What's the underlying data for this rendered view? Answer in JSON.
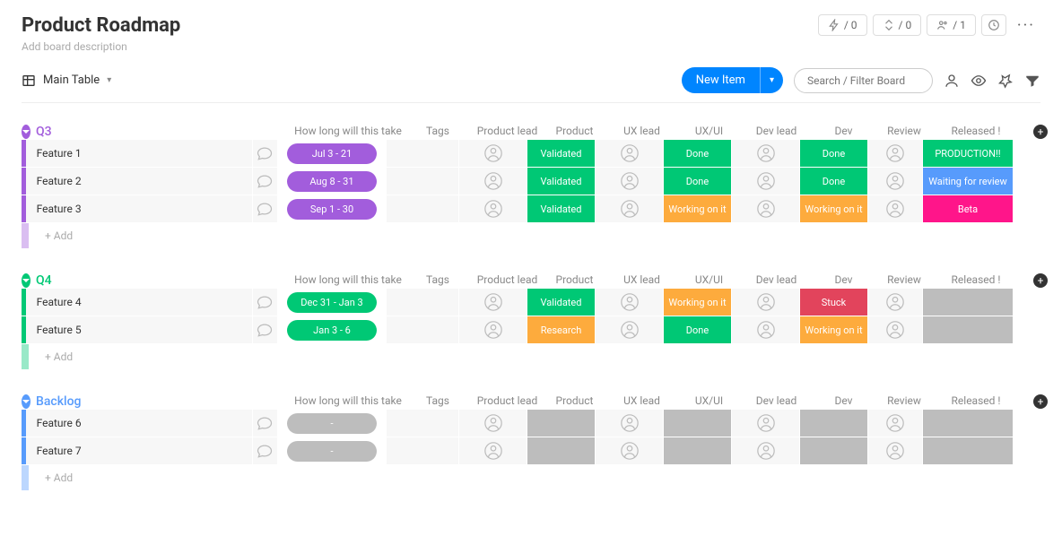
{
  "page": {
    "title": "Product Roadmap",
    "description_placeholder": "Add board description",
    "view_label": "Main Table",
    "new_item_label": "New Item",
    "search_placeholder": "Search / Filter Board",
    "add_row_label": "+ Add"
  },
  "header_pills": {
    "automations": "/ 0",
    "integrations": "/ 0",
    "members": "/ 1"
  },
  "columns": [
    "How long will this take",
    "Tags",
    "Product lead",
    "Product",
    "UX lead",
    "UX/UI",
    "Dev lead",
    "Dev",
    "Review",
    "Released !"
  ],
  "status_colors": {
    "validated": "#00c875",
    "done": "#00c875",
    "working": "#fdab3d",
    "stuck": "#e2445c",
    "research": "#fdab3d",
    "production": "#00c875",
    "waitreview": "#579bfc",
    "beta": "#ff158a",
    "grey": "#bdbdbd"
  },
  "groups": [
    {
      "id": "q3",
      "title": "Q3",
      "color": "#a25ddc",
      "time_pill_color": "#a25ddc",
      "rows": [
        {
          "name": "Feature 1",
          "time": "Jul 3 - 21",
          "product": {
            "label": "Validated",
            "color": "#00c875"
          },
          "uxui": {
            "label": "Done",
            "color": "#00c875"
          },
          "dev": {
            "label": "Done",
            "color": "#00c875"
          },
          "released": {
            "label": "PRODUCTION!!",
            "color": "#00c875"
          }
        },
        {
          "name": "Feature 2",
          "time": "Aug 8 - 31",
          "product": {
            "label": "Validated",
            "color": "#00c875"
          },
          "uxui": {
            "label": "Done",
            "color": "#00c875"
          },
          "dev": {
            "label": "Done",
            "color": "#00c875"
          },
          "released": {
            "label": "Waiting for review",
            "color": "#579bfc"
          }
        },
        {
          "name": "Feature 3",
          "time": "Sep 1 - 30",
          "product": {
            "label": "Validated",
            "color": "#00c875"
          },
          "uxui": {
            "label": "Working on it",
            "color": "#fdab3d"
          },
          "dev": {
            "label": "Working on it",
            "color": "#fdab3d"
          },
          "released": {
            "label": "Beta",
            "color": "#ff158a"
          }
        }
      ]
    },
    {
      "id": "q4",
      "title": "Q4",
      "color": "#00c875",
      "time_pill_color": "#00c875",
      "rows": [
        {
          "name": "Feature 4",
          "time": "Dec 31 - Jan 3",
          "product": {
            "label": "Validated",
            "color": "#00c875"
          },
          "uxui": {
            "label": "Working on it",
            "color": "#fdab3d"
          },
          "dev": {
            "label": "Stuck",
            "color": "#e2445c"
          },
          "released": {
            "label": "",
            "color": "#bdbdbd"
          }
        },
        {
          "name": "Feature 5",
          "time": "Jan 3 - 6",
          "product": {
            "label": "Research",
            "color": "#fdab3d"
          },
          "uxui": {
            "label": "Done",
            "color": "#00c875"
          },
          "dev": {
            "label": "Working on it",
            "color": "#fdab3d"
          },
          "released": {
            "label": "",
            "color": "#bdbdbd"
          }
        }
      ]
    },
    {
      "id": "backlog",
      "title": "Backlog",
      "color": "#579bfc",
      "time_pill_color": "#bdbdbd",
      "rows": [
        {
          "name": "Feature 6",
          "time": "-",
          "product": {
            "label": "",
            "color": "#bdbdbd"
          },
          "uxui": {
            "label": "",
            "color": "#bdbdbd"
          },
          "dev": {
            "label": "",
            "color": "#bdbdbd"
          },
          "released": {
            "label": "",
            "color": "#bdbdbd"
          }
        },
        {
          "name": "Feature 7",
          "time": "-",
          "product": {
            "label": "",
            "color": "#bdbdbd"
          },
          "uxui": {
            "label": "",
            "color": "#bdbdbd"
          },
          "dev": {
            "label": "",
            "color": "#bdbdbd"
          },
          "released": {
            "label": "",
            "color": "#bdbdbd"
          }
        }
      ]
    }
  ]
}
